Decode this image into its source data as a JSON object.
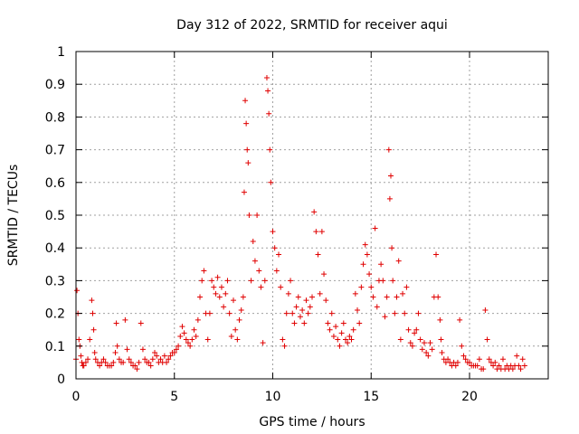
{
  "chart_data": {
    "type": "scatter",
    "title": "Day 312 of 2022, SRMTID for receiver aqui",
    "xlabel": "GPS time / hours",
    "ylabel": "SRMTID / TECUs",
    "xlim": [
      0,
      24
    ],
    "ylim": [
      0,
      1
    ],
    "xticks": [
      0,
      5,
      10,
      15,
      20
    ],
    "xtick_labels": [
      "0",
      "5",
      "10",
      "15",
      "20"
    ],
    "yticks": [
      0,
      0.1,
      0.2,
      0.3,
      0.4,
      0.5,
      0.6,
      0.7,
      0.8,
      0.9,
      1
    ],
    "ytick_labels": [
      "0",
      "0.1",
      "0.2",
      "0.3",
      "0.4",
      "0.5",
      "0.6",
      "0.7",
      "0.8",
      "0.9",
      "1"
    ],
    "grid": true,
    "marker": "+",
    "color": "#e00000",
    "series": [
      {
        "name": "SRMTID",
        "x": [
          0.0,
          0.05,
          0.1,
          0.15,
          0.2,
          0.25,
          0.3,
          0.35,
          0.4,
          0.5,
          0.6,
          0.7,
          0.8,
          0.85,
          0.9,
          0.95,
          1.0,
          1.1,
          1.2,
          1.3,
          1.4,
          1.5,
          1.6,
          1.7,
          1.8,
          1.9,
          2.0,
          2.05,
          2.1,
          2.2,
          2.3,
          2.4,
          2.5,
          2.6,
          2.7,
          2.8,
          2.9,
          3.0,
          3.1,
          3.2,
          3.3,
          3.4,
          3.5,
          3.6,
          3.7,
          3.8,
          3.9,
          4.0,
          4.1,
          4.2,
          4.3,
          4.4,
          4.5,
          4.6,
          4.7,
          4.8,
          4.9,
          5.0,
          5.1,
          5.2,
          5.3,
          5.4,
          5.5,
          5.6,
          5.7,
          5.8,
          5.9,
          6.0,
          6.1,
          6.2,
          6.3,
          6.4,
          6.5,
          6.6,
          6.7,
          6.8,
          6.9,
          7.0,
          7.1,
          7.2,
          7.3,
          7.4,
          7.5,
          7.6,
          7.7,
          7.8,
          7.9,
          8.0,
          8.1,
          8.2,
          8.3,
          8.4,
          8.5,
          8.55,
          8.6,
          8.65,
          8.7,
          8.75,
          8.8,
          8.9,
          9.0,
          9.1,
          9.2,
          9.3,
          9.4,
          9.5,
          9.6,
          9.7,
          9.75,
          9.8,
          9.85,
          9.9,
          10.0,
          10.1,
          10.2,
          10.3,
          10.4,
          10.5,
          10.6,
          10.7,
          10.8,
          10.9,
          11.0,
          11.1,
          11.2,
          11.3,
          11.4,
          11.5,
          11.6,
          11.7,
          11.8,
          11.9,
          12.0,
          12.1,
          12.2,
          12.3,
          12.4,
          12.5,
          12.6,
          12.7,
          12.8,
          12.9,
          13.0,
          13.1,
          13.2,
          13.3,
          13.4,
          13.5,
          13.6,
          13.7,
          13.8,
          13.9,
          14.0,
          14.1,
          14.2,
          14.3,
          14.4,
          14.5,
          14.6,
          14.7,
          14.8,
          14.9,
          15.0,
          15.1,
          15.2,
          15.3,
          15.4,
          15.5,
          15.6,
          15.7,
          15.8,
          15.9,
          15.95,
          16.0,
          16.05,
          16.1,
          16.2,
          16.3,
          16.4,
          16.5,
          16.6,
          16.7,
          16.8,
          16.9,
          17.0,
          17.1,
          17.2,
          17.3,
          17.4,
          17.5,
          17.6,
          17.7,
          17.8,
          17.9,
          18.0,
          18.1,
          18.2,
          18.3,
          18.4,
          18.5,
          18.55,
          18.6,
          18.7,
          18.8,
          18.9,
          19.0,
          19.1,
          19.2,
          19.3,
          19.4,
          19.5,
          19.6,
          19.7,
          19.8,
          19.9,
          20.0,
          20.1,
          20.2,
          20.3,
          20.4,
          20.5,
          20.6,
          20.7,
          20.8,
          20.9,
          21.0,
          21.1,
          21.2,
          21.3,
          21.4,
          21.5,
          21.6,
          21.7,
          21.8,
          21.9,
          22.0,
          22.1,
          22.2,
          22.3,
          22.4,
          22.5,
          22.6,
          22.7,
          22.8
        ],
        "y": [
          0.06,
          0.27,
          0.2,
          0.12,
          0.1,
          0.07,
          0.05,
          0.04,
          0.04,
          0.05,
          0.06,
          0.12,
          0.24,
          0.2,
          0.15,
          0.08,
          0.06,
          0.05,
          0.04,
          0.05,
          0.06,
          0.05,
          0.04,
          0.04,
          0.04,
          0.05,
          0.08,
          0.17,
          0.1,
          0.06,
          0.05,
          0.05,
          0.18,
          0.09,
          0.06,
          0.05,
          0.04,
          0.04,
          0.03,
          0.05,
          0.17,
          0.09,
          0.06,
          0.05,
          0.05,
          0.04,
          0.06,
          0.08,
          0.07,
          0.05,
          0.06,
          0.05,
          0.07,
          0.05,
          0.06,
          0.07,
          0.08,
          0.08,
          0.09,
          0.1,
          0.13,
          0.16,
          0.14,
          0.12,
          0.11,
          0.1,
          0.12,
          0.15,
          0.13,
          0.18,
          0.25,
          0.3,
          0.33,
          0.2,
          0.12,
          0.2,
          0.3,
          0.28,
          0.26,
          0.31,
          0.25,
          0.28,
          0.22,
          0.26,
          0.3,
          0.2,
          0.13,
          0.24,
          0.15,
          0.12,
          0.18,
          0.21,
          0.25,
          0.57,
          0.85,
          0.78,
          0.7,
          0.66,
          0.5,
          0.3,
          0.42,
          0.36,
          0.5,
          0.33,
          0.28,
          0.11,
          0.3,
          0.92,
          0.88,
          0.81,
          0.7,
          0.6,
          0.45,
          0.4,
          0.33,
          0.38,
          0.28,
          0.12,
          0.1,
          0.2,
          0.26,
          0.3,
          0.2,
          0.17,
          0.22,
          0.25,
          0.19,
          0.21,
          0.17,
          0.24,
          0.2,
          0.22,
          0.25,
          0.51,
          0.45,
          0.38,
          0.26,
          0.45,
          0.32,
          0.24,
          0.17,
          0.15,
          0.2,
          0.13,
          0.16,
          0.12,
          0.1,
          0.14,
          0.17,
          0.12,
          0.11,
          0.13,
          0.12,
          0.15,
          0.26,
          0.21,
          0.17,
          0.28,
          0.35,
          0.41,
          0.38,
          0.32,
          0.28,
          0.25,
          0.46,
          0.22,
          0.3,
          0.35,
          0.3,
          0.19,
          0.25,
          0.7,
          0.55,
          0.62,
          0.4,
          0.3,
          0.2,
          0.25,
          0.36,
          0.12,
          0.26,
          0.2,
          0.28,
          0.15,
          0.11,
          0.1,
          0.14,
          0.15,
          0.2,
          0.12,
          0.09,
          0.11,
          0.08,
          0.07,
          0.11,
          0.09,
          0.25,
          0.38,
          0.25,
          0.18,
          0.12,
          0.08,
          0.06,
          0.05,
          0.06,
          0.05,
          0.04,
          0.05,
          0.04,
          0.05,
          0.18,
          0.1,
          0.07,
          0.06,
          0.05,
          0.05,
          0.04,
          0.04,
          0.04,
          0.04,
          0.06,
          0.03,
          0.03,
          0.21,
          0.12,
          0.06,
          0.05,
          0.04,
          0.05,
          0.03,
          0.04,
          0.03,
          0.06,
          0.03,
          0.04,
          0.03,
          0.04,
          0.03,
          0.04,
          0.07,
          0.04,
          0.03,
          0.06,
          0.04
        ]
      }
    ]
  }
}
